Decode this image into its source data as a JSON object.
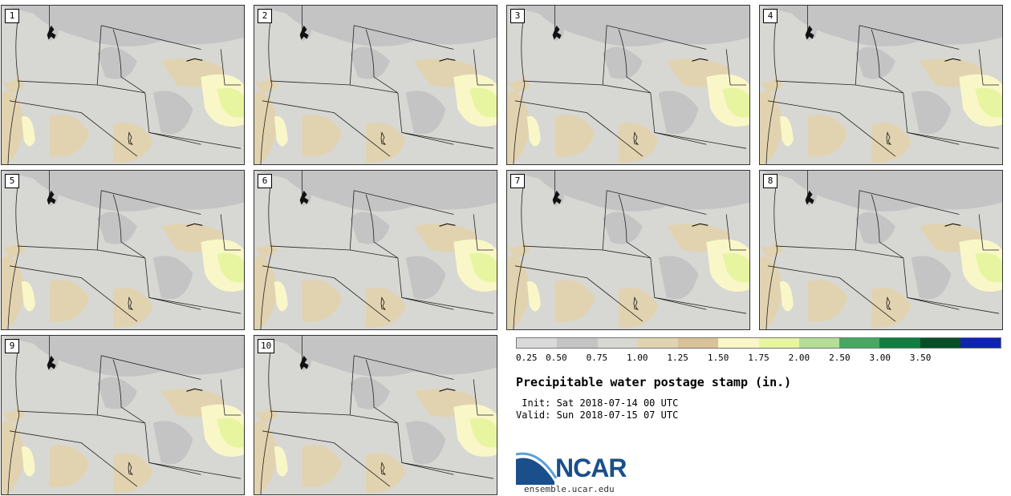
{
  "panels": [
    {
      "label": "1"
    },
    {
      "label": "2"
    },
    {
      "label": "3"
    },
    {
      "label": "4"
    },
    {
      "label": "5"
    },
    {
      "label": "6"
    },
    {
      "label": "7"
    },
    {
      "label": "8"
    },
    {
      "label": "9"
    },
    {
      "label": "10"
    }
  ],
  "legend": {
    "ticks": [
      "0.25",
      "0.50",
      "0.75",
      "1.00",
      "1.25",
      "1.50",
      "1.75",
      "2.00",
      "2.50",
      "3.00",
      "3.50"
    ],
    "colors": [
      "#d9d9d9",
      "#c4c4c4",
      "#d8d8d2",
      "#e2d3b0",
      "#d9c199",
      "#f9f7c8",
      "#e7f5a0",
      "#b4dd96",
      "#47a861",
      "#0e7f3e",
      "#064e26",
      "#1024b4"
    ]
  },
  "title": "Precipitable water postage stamp (in.)",
  "init": " Init: Sat 2018-07-14 00 UTC",
  "valid": "Valid: Sun 2018-07-15 07 UTC",
  "logo": {
    "text": "NCAR",
    "url": "ensemble.ucar.edu"
  }
}
